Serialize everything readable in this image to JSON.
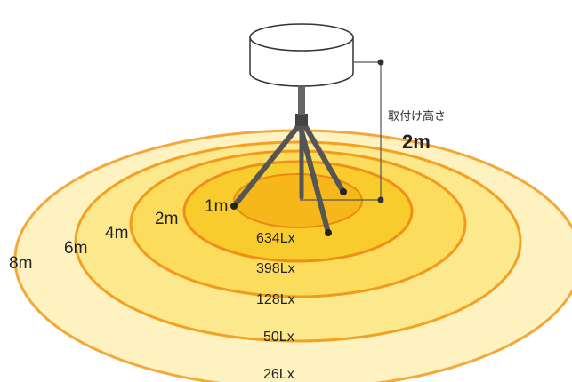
{
  "rings": [
    {
      "distance": "8m",
      "lux": "26Lx",
      "fill": "#fdf2c0",
      "stroke": "#f4a83a"
    },
    {
      "distance": "6m",
      "lux": "50Lx",
      "fill": "#fce98e",
      "stroke": "#f4a020"
    },
    {
      "distance": "4m",
      "lux": "128Lx",
      "fill": "#fbdc5c",
      "stroke": "#f29a1e"
    },
    {
      "distance": "2m",
      "lux": "398Lx",
      "fill": "#f9cc2e",
      "stroke": "#ef8f18"
    },
    {
      "distance": "1m",
      "lux": "634Lx",
      "fill": "#f6b71a",
      "stroke": "#ea8a10"
    }
  ],
  "mount": {
    "caption": "取付け高さ",
    "height": "2m"
  },
  "colors": {
    "tripod": "#555555",
    "light_body": "#ffffff",
    "outline": "#333333"
  }
}
